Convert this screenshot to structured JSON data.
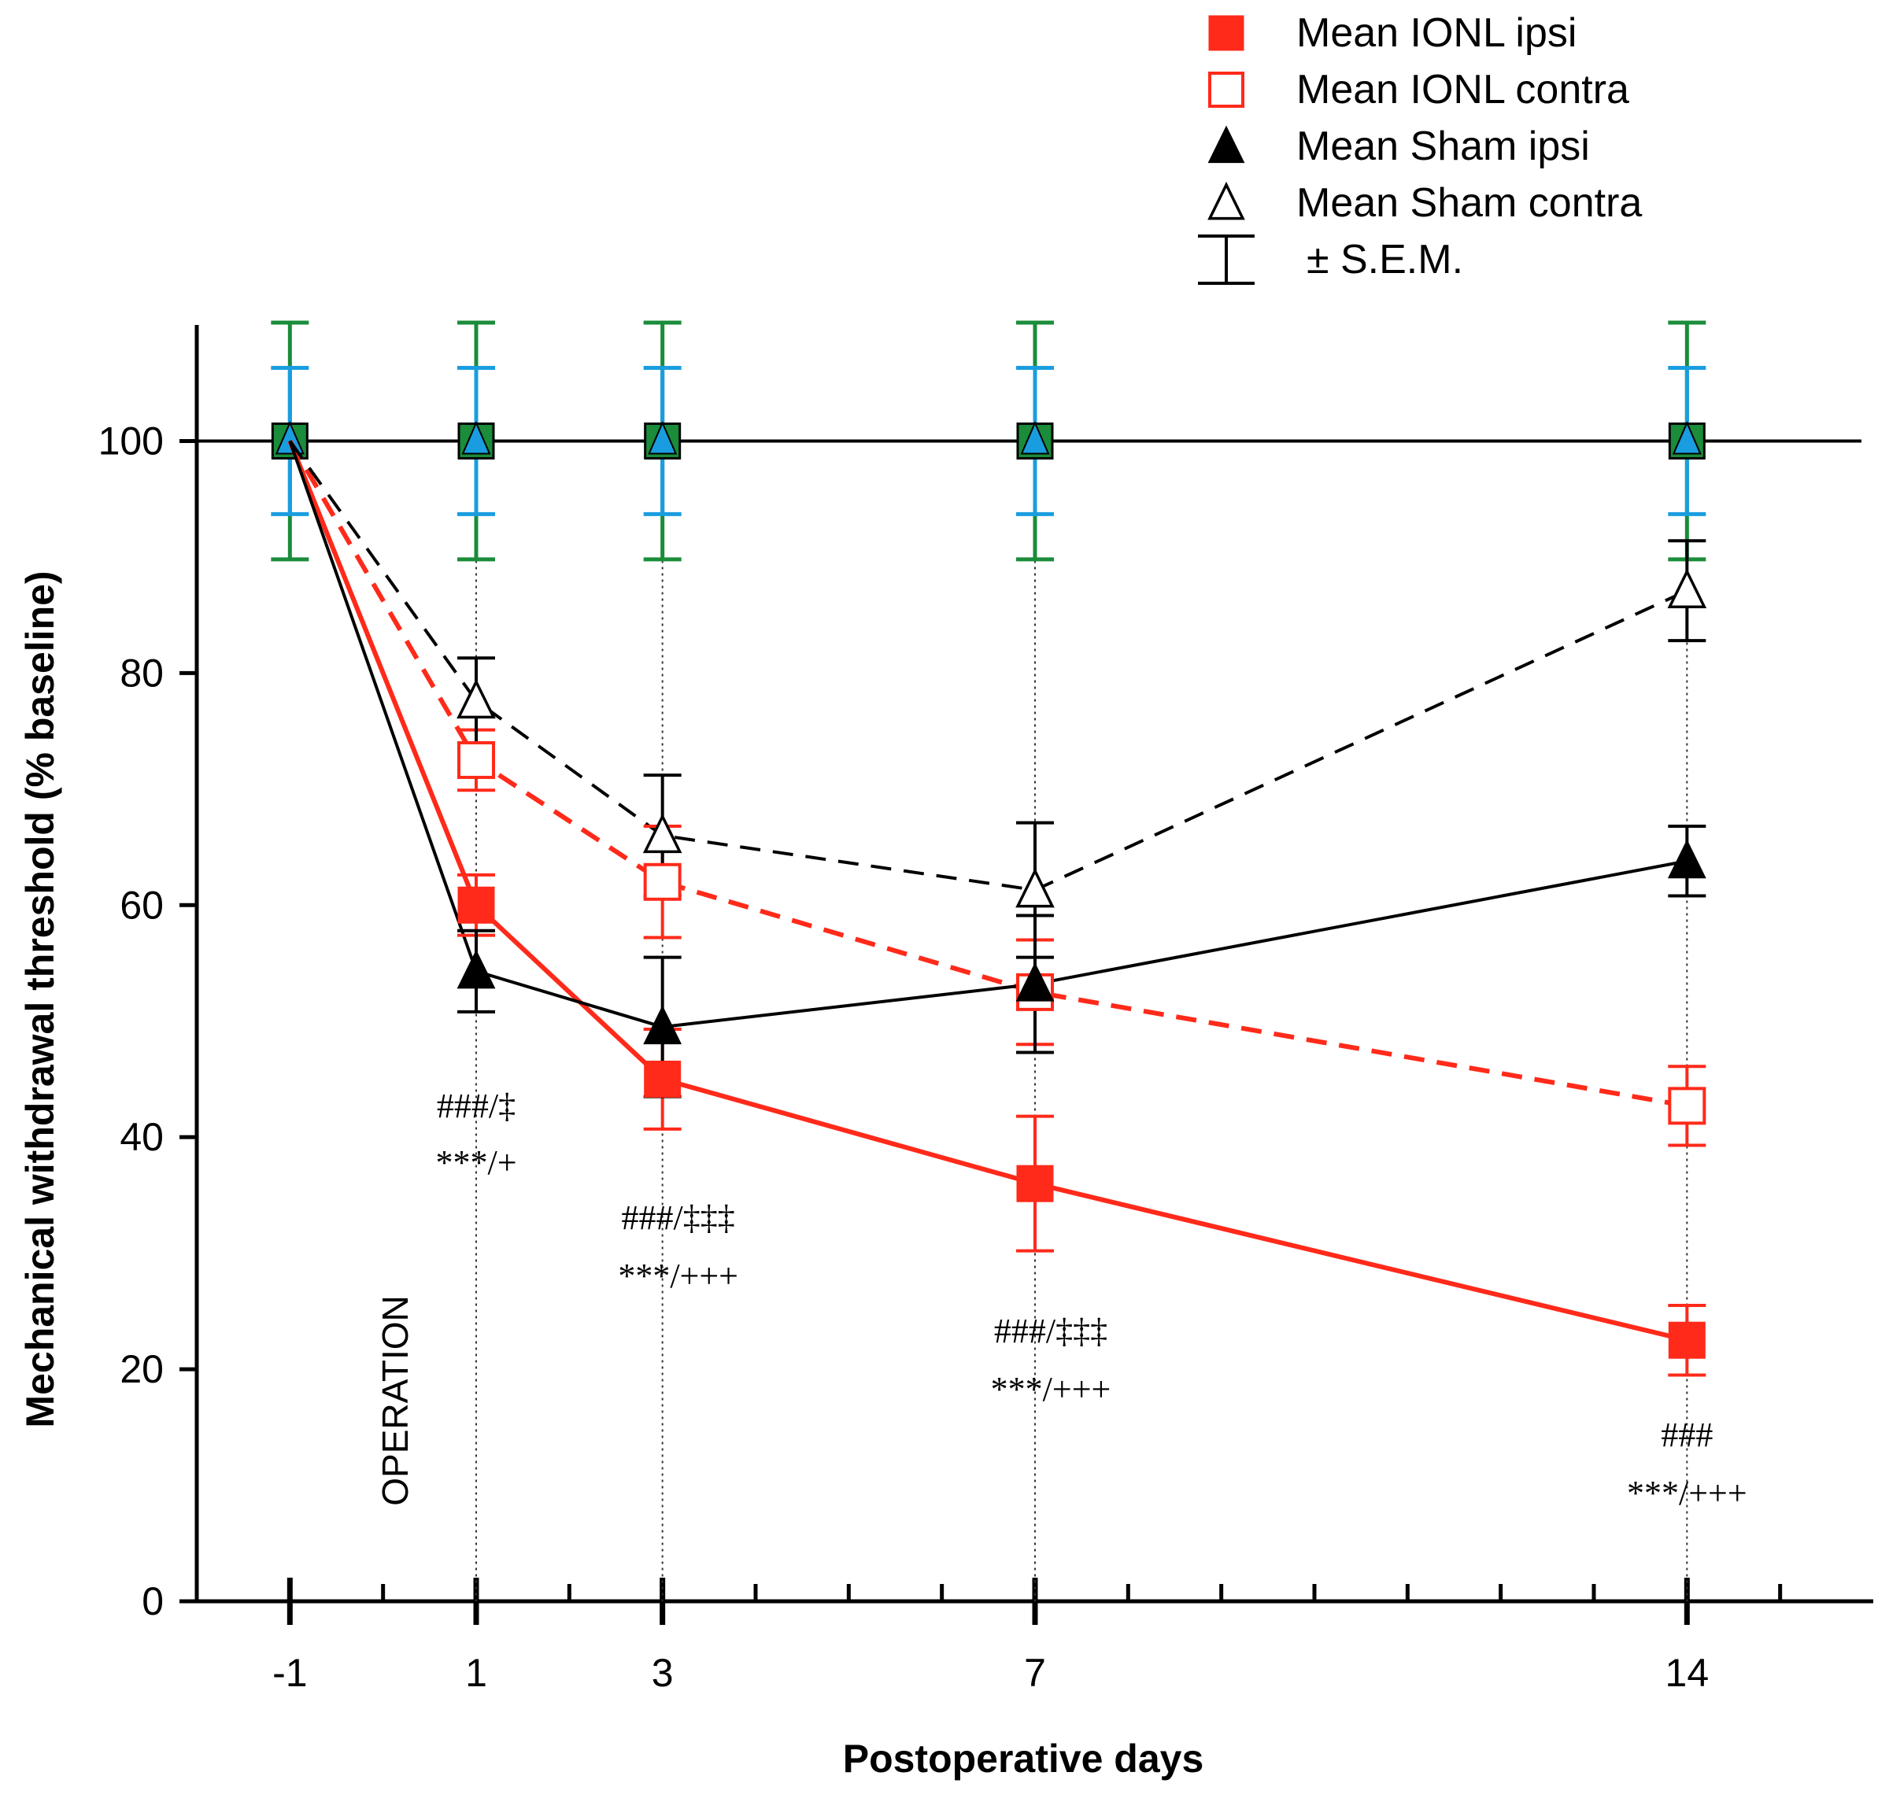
{
  "chart_data": {
    "type": "line",
    "title": "",
    "xlabel": "Postoperative days",
    "ylabel": "Mechanical withdrawal threshold (% baseline)",
    "ylim": [
      0,
      110
    ],
    "xlim": [
      -2,
      16
    ],
    "yticks": [
      0,
      20,
      40,
      60,
      80,
      100
    ],
    "ytick_labels": [
      "0",
      "20",
      "40",
      "60",
      "80",
      "100"
    ],
    "x": [
      -1,
      1,
      3,
      7,
      14
    ],
    "x_tick_labels": [
      "-1",
      "1",
      "3",
      "7",
      "14"
    ],
    "minor_ticks": [
      0,
      2,
      4,
      5,
      6,
      8,
      9,
      10,
      11,
      12,
      13,
      15
    ],
    "grid": false,
    "legend_position": "top-right",
    "operation_label": "OPERATION",
    "baseline_level": 100,
    "series": [
      {
        "name": "Mean IONL ipsi",
        "color": "#ff2a1a",
        "marker": "square-filled",
        "line": "solid",
        "values": [
          100,
          60,
          45,
          36,
          22.5
        ],
        "errors": [
          null,
          2.6,
          4.3,
          5.8,
          3.0
        ]
      },
      {
        "name": "Mean IONL contra",
        "color": "#ff2a1a",
        "marker": "square-open",
        "line": "dashed",
        "values": [
          100,
          72.5,
          62,
          52.5,
          42.7
        ],
        "errors": [
          null,
          2.6,
          4.8,
          4.5,
          3.4
        ]
      },
      {
        "name": "Mean Sham ipsi",
        "color": "#000000",
        "marker": "triangle-filled",
        "line": "solid",
        "values": [
          100,
          54.3,
          49.5,
          53.2,
          63.8
        ],
        "errors": [
          null,
          3.5,
          6.0,
          5.9,
          3.0
        ]
      },
      {
        "name": "Mean Sham contra",
        "color": "#000000",
        "marker": "triangle-open",
        "line": "dashed",
        "values": [
          100,
          77.6,
          66,
          61.3,
          87.1
        ],
        "errors": [
          null,
          3.7,
          5.2,
          5.8,
          4.3
        ]
      }
    ],
    "baseline_error_bars": [
      {
        "color": "#1a8c3a",
        "half_range": 10.2
      },
      {
        "color": "#1a9de0",
        "half_range": 6.3
      }
    ],
    "baseline_marker_colors": {
      "square": "#1a8c3a",
      "triangle": "#1a9de0"
    },
    "sem_legend_label": "± S.E.M.",
    "annotations": [
      {
        "x": 1,
        "lines": [
          "###/‡",
          "***/+"
        ]
      },
      {
        "x": 3,
        "lines": [
          "###/‡‡‡",
          "***/+++"
        ]
      },
      {
        "x": 7,
        "lines": [
          "###/‡‡‡",
          "***/+++"
        ]
      },
      {
        "x": 14,
        "lines": [
          "###",
          "***/+++"
        ]
      }
    ]
  }
}
